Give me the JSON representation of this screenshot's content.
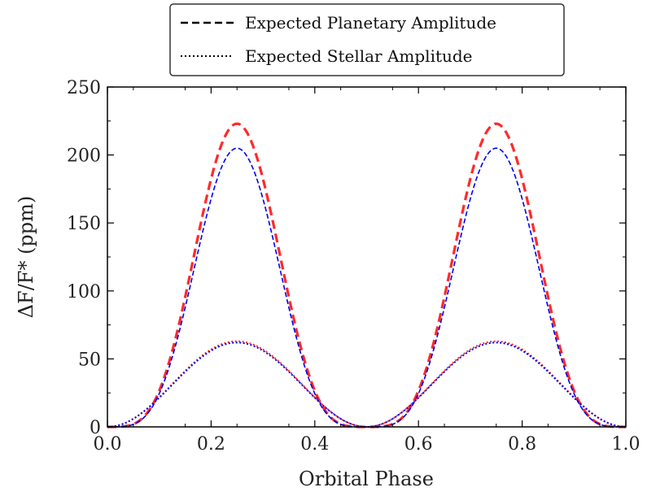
{
  "chart_data": {
    "type": "line",
    "xlabel": "Orbital Phase",
    "ylabel": "ΔF/F* (ppm)",
    "xlim": [
      0.0,
      1.0
    ],
    "ylim": [
      0,
      250
    ],
    "xticks": [
      "0.0",
      "0.2",
      "0.4",
      "0.6",
      "0.8",
      "1.0"
    ],
    "yticks": [
      "0",
      "50",
      "100",
      "150",
      "200",
      "250"
    ],
    "xtick_values": [
      0.0,
      0.2,
      0.4,
      0.6,
      0.8,
      1.0
    ],
    "ytick_values": [
      0,
      50,
      100,
      150,
      200,
      250
    ],
    "grid": false,
    "legend": {
      "placement": "top-center-outside",
      "entries": [
        {
          "label": "Expected Planetary Amplitude",
          "style": "dashed"
        },
        {
          "label": "Expected Stellar Amplitude",
          "style": "dotted"
        }
      ]
    },
    "series": [
      {
        "style": "dashed-thick",
        "color": "#ff2a2a",
        "amplitude": 223,
        "shape": "sin2-squared"
      },
      {
        "style": "dashed-thin",
        "color": "#0000ee",
        "amplitude": 205,
        "shape": "sin2-squared"
      },
      {
        "style": "dotted",
        "color": "#ff2a2a",
        "amplitude": 63,
        "shape": "sin2"
      },
      {
        "style": "dotted",
        "color": "#0000ee",
        "amplitude": 62,
        "shape": "sin2"
      }
    ]
  }
}
